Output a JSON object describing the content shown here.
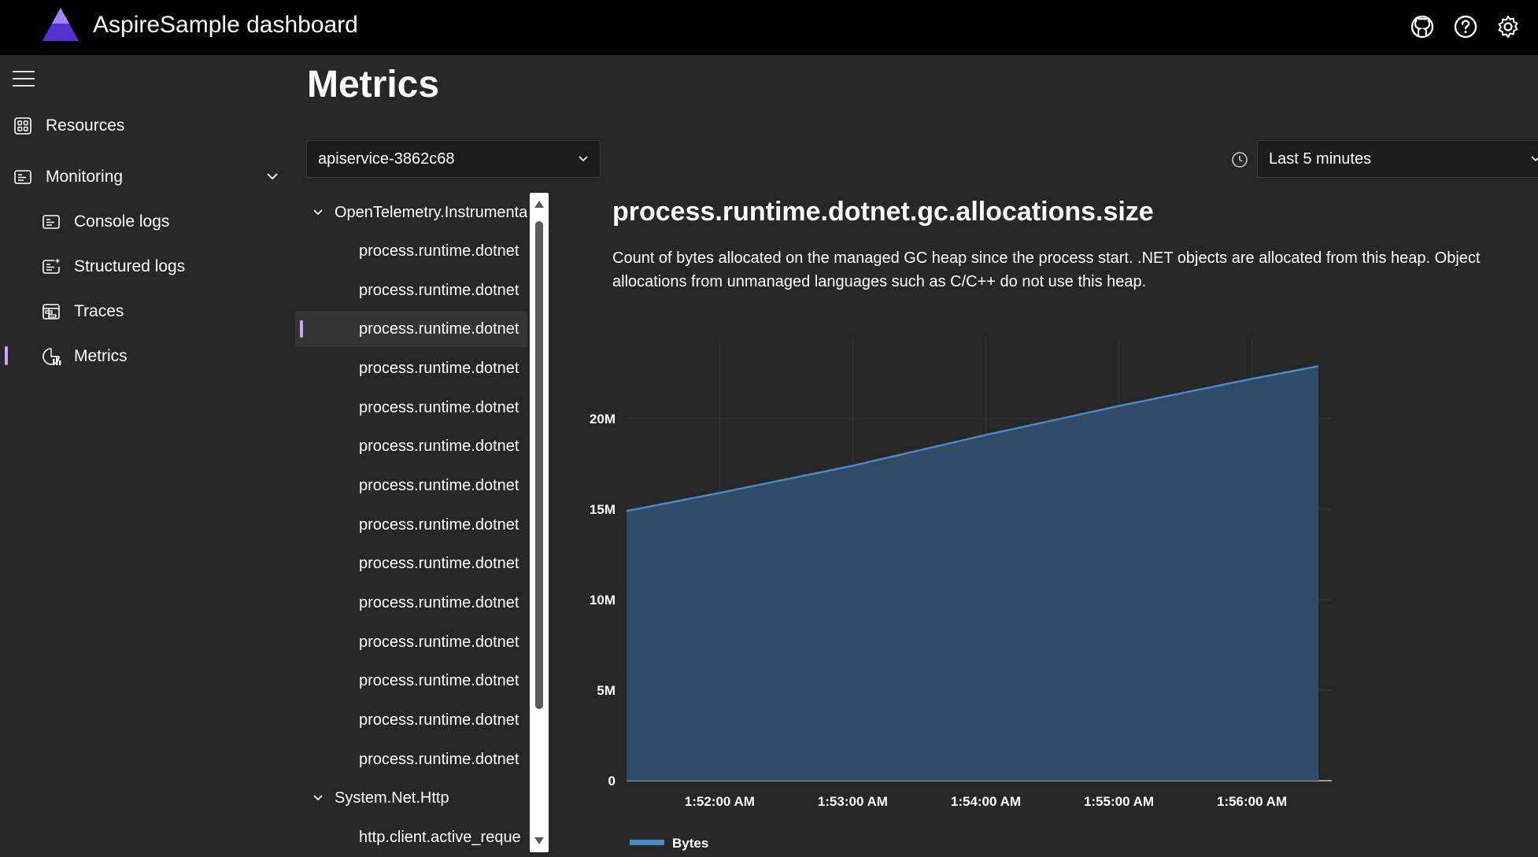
{
  "header": {
    "app_title": "AspireSample dashboard",
    "icons": [
      "github-icon",
      "help-icon",
      "settings-icon"
    ]
  },
  "sidebar": {
    "items": [
      {
        "label": "Resources",
        "icon": "resources-icon"
      },
      {
        "label": "Monitoring",
        "icon": "monitoring-icon"
      },
      {
        "label": "Console logs",
        "icon": "console-logs-icon"
      },
      {
        "label": "Structured logs",
        "icon": "structured-logs-icon"
      },
      {
        "label": "Traces",
        "icon": "traces-icon"
      },
      {
        "label": "Metrics",
        "icon": "metrics-icon",
        "active": true
      }
    ]
  },
  "main": {
    "title": "Metrics",
    "resource_select": "apiservice-3862c68",
    "time_select": "Last 5 minutes"
  },
  "tree": {
    "groups": [
      {
        "label": "OpenTelemetry.Instrumentation.Runtime",
        "items": [
          "process.runtime.dotnet",
          "process.runtime.dotnet",
          "process.runtime.dotnet",
          "process.runtime.dotnet",
          "process.runtime.dotnet",
          "process.runtime.dotnet",
          "process.runtime.dotnet",
          "process.runtime.dotnet",
          "process.runtime.dotnet",
          "process.runtime.dotnet",
          "process.runtime.dotnet",
          "process.runtime.dotnet",
          "process.runtime.dotnet",
          "process.runtime.dotnet"
        ],
        "selected_index": 2
      },
      {
        "label": "System.Net.Http",
        "items": [
          "http.client.active_reque"
        ]
      }
    ]
  },
  "metric": {
    "name": "process.runtime.dotnet.gc.allocations.size",
    "description": "Count of bytes allocated on the managed GC heap since the process start. .NET objects are allocated from this heap. Object allocations from unmanaged languages such as C/C++ do not use this heap."
  },
  "colors": {
    "accent": "#c9a6ff",
    "area_fill": "#2f4b68",
    "area_line": "#4a88c8",
    "header_bg": "#000000",
    "page_bg": "#272727"
  },
  "chart_data": {
    "type": "area",
    "series": [
      {
        "name": "Bytes",
        "x": [
          "1:51:18 AM",
          "1:52:00 AM",
          "1:53:00 AM",
          "1:54:00 AM",
          "1:55:00 AM",
          "1:56:00 AM",
          "1:56:30 AM"
        ],
        "values": [
          14.9,
          15.9,
          17.4,
          19.1,
          20.7,
          22.2,
          22.9
        ]
      }
    ],
    "x_ticks": [
      "1:52:00 AM",
      "1:53:00 AM",
      "1:54:00 AM",
      "1:55:00 AM",
      "1:56:00 AM"
    ],
    "y_ticks": [
      "0",
      "5M",
      "10M",
      "15M",
      "20M"
    ],
    "y_tick_values": [
      0,
      5,
      10,
      15,
      20
    ],
    "ylim": [
      0,
      24
    ],
    "grid": true,
    "legend": "bottom-left"
  }
}
